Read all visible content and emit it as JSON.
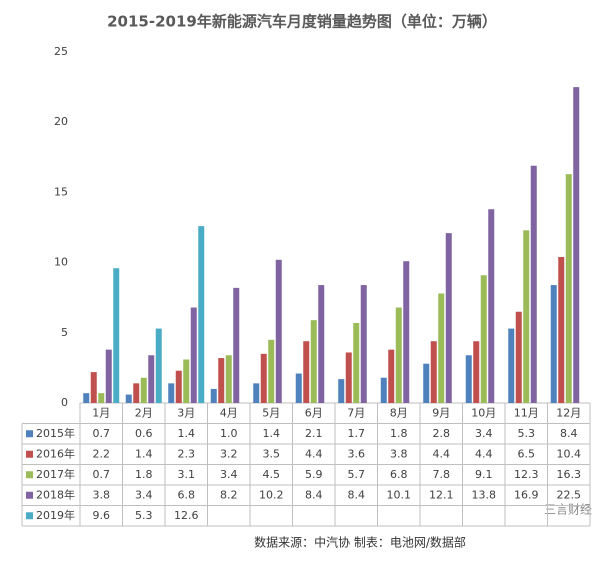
{
  "chart_data": {
    "type": "bar",
    "title": "2015-2019年新能源汽车月度销量趋势图（单位：万辆）",
    "categories": [
      "1月",
      "2月",
      "3月",
      "4月",
      "5月",
      "6月",
      "7月",
      "8月",
      "9月",
      "10月",
      "11月",
      "12月"
    ],
    "series": [
      {
        "name": "2015年",
        "color": "#4f81bd",
        "values": [
          0.7,
          0.6,
          1.4,
          1.0,
          1.4,
          2.1,
          1.7,
          1.8,
          2.8,
          3.4,
          5.3,
          8.4
        ],
        "value_labels": [
          "0.7",
          "0.6",
          "1.4",
          "1.0",
          "1.4",
          "2.1",
          "1.7",
          "1.8",
          "2.8",
          "3.4",
          "5.3",
          "8.4"
        ]
      },
      {
        "name": "2016年",
        "color": "#c0504d",
        "values": [
          2.2,
          1.4,
          2.3,
          3.2,
          3.5,
          4.4,
          3.6,
          3.8,
          4.4,
          4.4,
          6.5,
          10.4
        ]
      },
      {
        "name": "2017年",
        "color": "#9bbb59",
        "values": [
          0.7,
          1.8,
          3.1,
          3.4,
          4.5,
          5.9,
          5.7,
          6.8,
          7.8,
          9.1,
          12.3,
          16.3
        ]
      },
      {
        "name": "2018年",
        "color": "#8064a2",
        "values": [
          3.8,
          3.4,
          6.8,
          8.2,
          10.2,
          8.4,
          8.4,
          10.1,
          12.1,
          13.8,
          16.9,
          22.5
        ]
      },
      {
        "name": "2019年",
        "color": "#4bacc6",
        "values": [
          9.6,
          5.3,
          12.6,
          null,
          null,
          null,
          null,
          null,
          null,
          null,
          null,
          null
        ]
      }
    ],
    "ylim": [
      0,
      25
    ],
    "yticks": [
      0,
      5,
      10,
      15,
      20,
      25
    ],
    "grid": false,
    "source": "数据来源：中汽协  制表：电池网/数据部",
    "watermark": "三言财经"
  }
}
